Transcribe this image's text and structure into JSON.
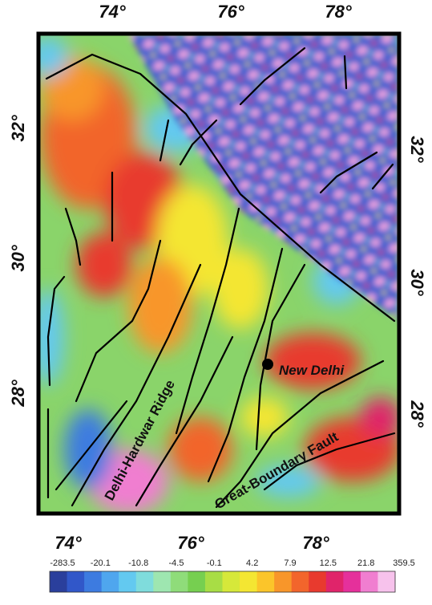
{
  "map": {
    "top_labels": [
      "74°",
      "76°",
      "78°"
    ],
    "bottom_labels": [
      "74°",
      "76°",
      "78°"
    ],
    "left_labels": [
      "32°",
      "30°",
      "28°"
    ],
    "right_labels": [
      "32°",
      "30°",
      "28°"
    ],
    "place": "New Delhi",
    "features": [
      "Delhi-Hardwar Ridge",
      "Great-Boundary Fault"
    ]
  },
  "colorbar": {
    "labels": [
      "-283.5",
      "-20.1",
      "-10.8",
      "-4.5",
      "-0.1",
      "4.2",
      "7.9",
      "12.5",
      "21.8",
      "359.5"
    ],
    "colors": [
      "#2a3f9c",
      "#3157c9",
      "#3d7be0",
      "#4fa6ee",
      "#63c9f0",
      "#7fdcdc",
      "#9ee6b0",
      "#8fdc7a",
      "#76cf50",
      "#a8dd45",
      "#d6e83a",
      "#f4e632",
      "#fbc52a",
      "#f8962a",
      "#f2652c",
      "#e83a2e",
      "#e0246a",
      "#e5309b",
      "#f07ed0",
      "#f7c2ec"
    ]
  }
}
